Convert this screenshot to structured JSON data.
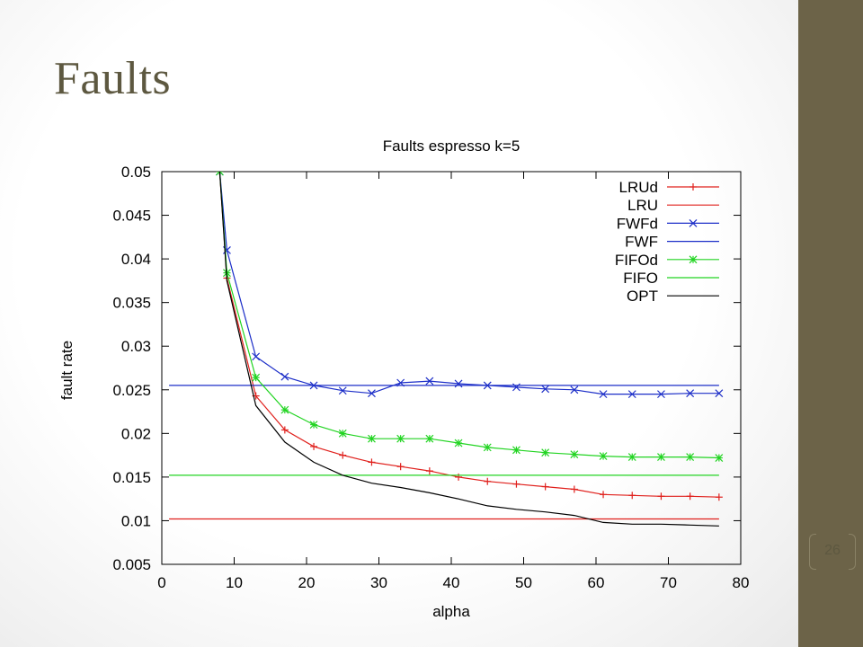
{
  "slide": {
    "title": "Faults",
    "page_number": "26",
    "sidebar_color": "#6c6348"
  },
  "chart_data": {
    "type": "line",
    "title": "Faults espresso k=5",
    "xlabel": "alpha",
    "ylabel": "fault rate",
    "xlim": [
      0,
      80
    ],
    "ylim": [
      0.005,
      0.05
    ],
    "xticks": [
      "0",
      "10",
      "20",
      "30",
      "40",
      "50",
      "60",
      "70",
      "80"
    ],
    "yticks": [
      "0.005",
      "0.01",
      "0.015",
      "0.02",
      "0.025",
      "0.03",
      "0.035",
      "0.04",
      "0.045",
      "0.05"
    ],
    "legend_position": "top-right",
    "series": [
      {
        "name": "LRUd",
        "color": "#e0201c",
        "marker": "plus",
        "x": [
          8,
          9,
          13,
          17,
          21,
          25,
          29,
          33,
          37,
          41,
          45,
          49,
          53,
          57,
          61,
          65,
          69,
          73,
          77
        ],
        "y": [
          0.05,
          0.0378,
          0.0243,
          0.0204,
          0.0185,
          0.0175,
          0.0167,
          0.0162,
          0.0157,
          0.015,
          0.0145,
          0.0142,
          0.0139,
          0.0136,
          0.013,
          0.0129,
          0.0128,
          0.0128,
          0.0127
        ]
      },
      {
        "name": "LRU",
        "color": "#e0201c",
        "marker": "none",
        "x": [
          1,
          77
        ],
        "y": [
          0.0102,
          0.0102
        ]
      },
      {
        "name": "FWFd",
        "color": "#1c2ec8",
        "marker": "cross",
        "x": [
          8,
          9,
          13,
          17,
          21,
          25,
          29,
          33,
          37,
          41,
          45,
          49,
          53,
          57,
          61,
          65,
          69,
          73,
          77
        ],
        "y": [
          0.05,
          0.041,
          0.0288,
          0.0265,
          0.0255,
          0.0249,
          0.0246,
          0.0258,
          0.026,
          0.0257,
          0.0255,
          0.0253,
          0.0251,
          0.025,
          0.0245,
          0.0245,
          0.0245,
          0.0246,
          0.0246
        ]
      },
      {
        "name": "FWF",
        "color": "#1c2ec8",
        "marker": "none",
        "x": [
          1,
          77
        ],
        "y": [
          0.0255,
          0.0255
        ]
      },
      {
        "name": "FIFOd",
        "color": "#22d422",
        "marker": "star",
        "x": [
          8,
          9,
          13,
          17,
          21,
          25,
          29,
          33,
          37,
          41,
          45,
          49,
          53,
          57,
          61,
          65,
          69,
          73,
          77
        ],
        "y": [
          0.05,
          0.0384,
          0.0264,
          0.0227,
          0.021,
          0.02,
          0.0194,
          0.0194,
          0.0194,
          0.0189,
          0.0184,
          0.0181,
          0.0178,
          0.0176,
          0.0174,
          0.0173,
          0.0173,
          0.0173,
          0.0172
        ]
      },
      {
        "name": "FIFO",
        "color": "#22d422",
        "marker": "none",
        "x": [
          1,
          77
        ],
        "y": [
          0.0152,
          0.0152
        ]
      },
      {
        "name": "OPT",
        "color": "#000000",
        "marker": "none",
        "x": [
          8,
          9,
          13,
          17,
          21,
          25,
          29,
          33,
          37,
          41,
          45,
          49,
          53,
          57,
          61,
          65,
          69,
          73,
          77
        ],
        "y": [
          0.05,
          0.0375,
          0.0232,
          0.019,
          0.0167,
          0.0152,
          0.0143,
          0.0138,
          0.0132,
          0.0125,
          0.0117,
          0.0113,
          0.011,
          0.0106,
          0.0098,
          0.0096,
          0.0096,
          0.0095,
          0.0094
        ]
      }
    ]
  }
}
